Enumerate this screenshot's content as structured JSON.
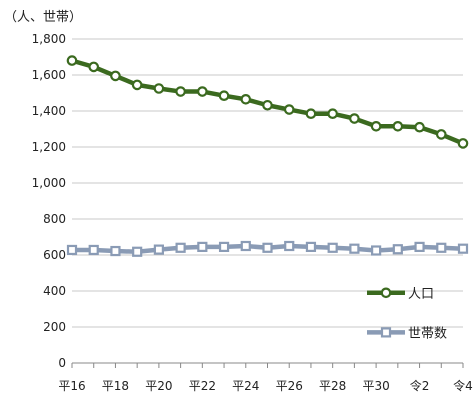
{
  "chart_data": {
    "type": "line",
    "unit_label": "（人、世帯）",
    "x": [
      "平16",
      "平17",
      "平18",
      "平19",
      "平20",
      "平21",
      "平22",
      "平23",
      "平24",
      "平25",
      "平26",
      "平27",
      "平28",
      "平29",
      "平30",
      "令元",
      "令2",
      "令3",
      "令4"
    ],
    "tick_labels": [
      "平16",
      "",
      "平18",
      "",
      "平20",
      "",
      "平22",
      "",
      "平24",
      "",
      "平26",
      "",
      "平28",
      "",
      "平30",
      "",
      "令2",
      "",
      "令4"
    ],
    "ylim": [
      0,
      1800
    ],
    "yticks": [
      0,
      200,
      400,
      600,
      800,
      1000,
      1200,
      1400,
      1600,
      1800
    ],
    "ytick_labels": [
      "0",
      "200",
      "400",
      "600",
      "800",
      "1,000",
      "1,200",
      "1,400",
      "1,600",
      "1,800"
    ],
    "grid": "horizontal",
    "legend_position": "right",
    "series": [
      {
        "name": "人口",
        "color": "#3b6a1f",
        "marker": "circle",
        "values": [
          1680,
          1645,
          1595,
          1545,
          1525,
          1508,
          1508,
          1485,
          1465,
          1432,
          1408,
          1385,
          1385,
          1358,
          1315,
          1315,
          1310,
          1270,
          1220
        ]
      },
      {
        "name": "世帯数",
        "color": "#8a9bb5",
        "marker": "square",
        "values": [
          628,
          628,
          622,
          618,
          630,
          640,
          645,
          645,
          650,
          640,
          650,
          645,
          640,
          635,
          625,
          632,
          645,
          640,
          635
        ]
      }
    ]
  }
}
